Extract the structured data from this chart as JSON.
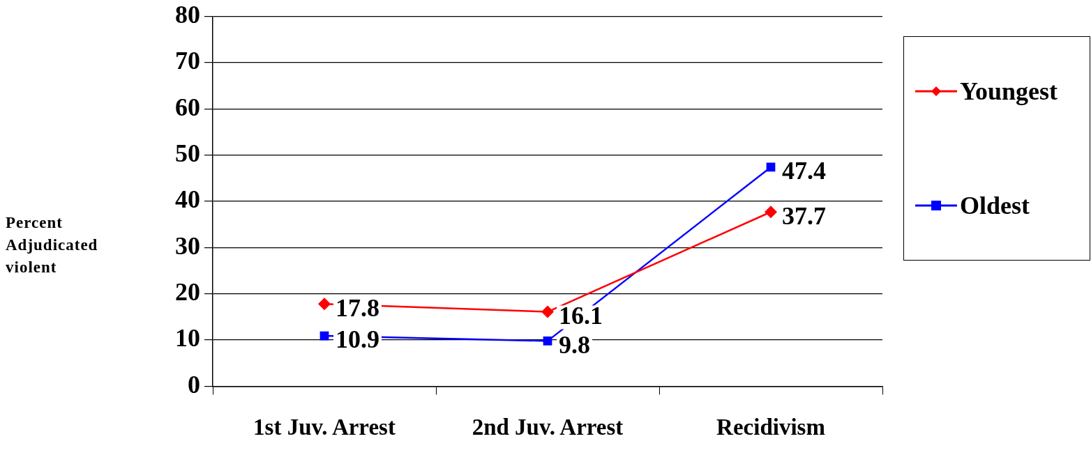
{
  "chart_data": {
    "type": "line",
    "ylabel": "Percent Adjudicated violent",
    "categories": [
      "1st Juv. Arrest",
      "2nd Juv. Arrest",
      "Recidivism"
    ],
    "series": [
      {
        "name": "Youngest",
        "color": "#ff0000",
        "marker": "diamond",
        "values": [
          17.8,
          16.1,
          37.7
        ]
      },
      {
        "name": "Oldest",
        "color": "#0000ff",
        "marker": "square",
        "values": [
          10.9,
          9.8,
          47.4
        ]
      }
    ],
    "ylim": [
      0,
      80
    ],
    "yticks": [
      0,
      10,
      20,
      30,
      40,
      50,
      60,
      70,
      80
    ],
    "grid": "y",
    "legend": "right",
    "data_labels": true,
    "line_style": "solid"
  }
}
